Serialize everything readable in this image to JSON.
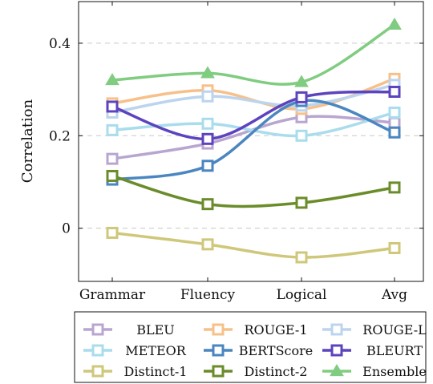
{
  "chart_data": {
    "type": "line",
    "categories": [
      "Grammar",
      "Fluency",
      "Logical",
      "Avg"
    ],
    "ylabel": "Correlation",
    "xlabel": "",
    "ylim": [
      -0.115,
      0.49
    ],
    "yticks": [
      0,
      0.2,
      0.4
    ],
    "ytick_labels": [
      "0",
      "0.2",
      "0.4"
    ],
    "grid": "horizontal dashed",
    "legend_position": "bottom",
    "series": [
      {
        "name": "BLEU",
        "values": [
          0.15,
          0.183,
          0.24,
          0.228
        ],
        "color": "#b9a6d0",
        "marker": "square"
      },
      {
        "name": "ROUGE-1",
        "values": [
          0.27,
          0.298,
          0.258,
          0.323
        ],
        "color": "#f7c08a",
        "marker": "square"
      },
      {
        "name": "ROUGE-L",
        "values": [
          0.25,
          0.285,
          0.265,
          0.31
        ],
        "color": "#bcd4ee",
        "marker": "square"
      },
      {
        "name": "METEOR",
        "values": [
          0.212,
          0.226,
          0.2,
          0.25
        ],
        "color": "#a9dcec",
        "marker": "square"
      },
      {
        "name": "BERTScore",
        "values": [
          0.105,
          0.135,
          0.275,
          0.207
        ],
        "color": "#4a86c0",
        "marker": "square"
      },
      {
        "name": "BLEURT",
        "values": [
          0.263,
          0.193,
          0.283,
          0.295
        ],
        "color": "#5d43be",
        "marker": "square"
      },
      {
        "name": "Distinct-1",
        "values": [
          -0.01,
          -0.035,
          -0.063,
          -0.043
        ],
        "color": "#cfc77a",
        "marker": "square"
      },
      {
        "name": "Distinct-2",
        "values": [
          0.113,
          0.052,
          0.055,
          0.088
        ],
        "color": "#6a8c2a",
        "marker": "square"
      },
      {
        "name": "Ensemble",
        "values": [
          0.32,
          0.335,
          0.316,
          0.44
        ],
        "color": "#80cc80",
        "marker": "triangle"
      }
    ]
  }
}
